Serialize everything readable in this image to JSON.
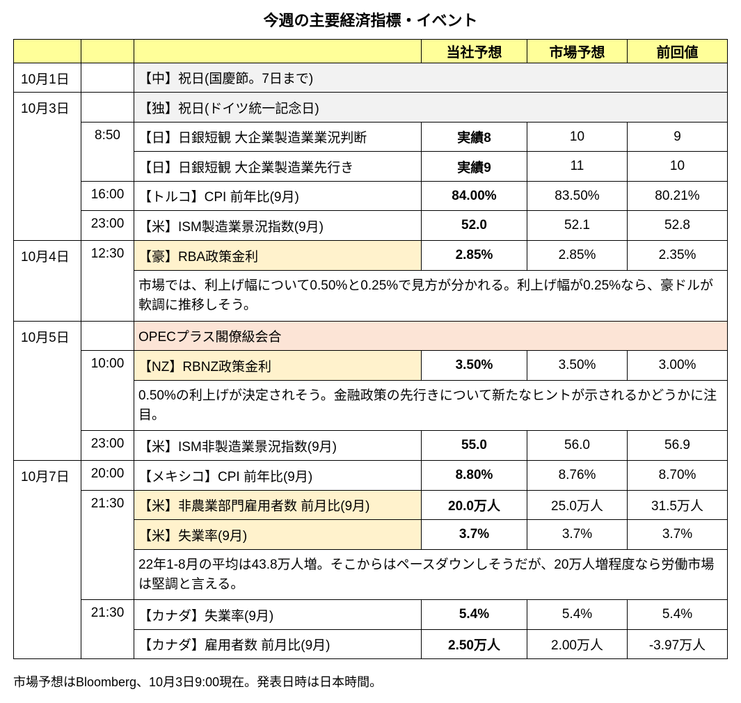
{
  "title": "今週の主要経済指標・イベント",
  "header": {
    "ours": "当社予想",
    "market": "市場予想",
    "prev": "前回値"
  },
  "rows": {
    "r1": {
      "date": "10月1日",
      "event": "【中】祝日(国慶節。7日まで)"
    },
    "r2": {
      "date": "10月3日",
      "event": "【独】祝日(ドイツ統一記念日)"
    },
    "r3": {
      "time": "8:50",
      "event": "【日】日銀短観 大企業製造業業況判断",
      "ours": "実績8",
      "market": "10",
      "prev": "9"
    },
    "r4": {
      "event": "【日】日銀短観 大企業製造業先行き",
      "ours": "実績9",
      "market": "11",
      "prev": "10"
    },
    "r5": {
      "time": "16:00",
      "event": "【トルコ】CPI 前年比(9月)",
      "ours": "84.00%",
      "market": "83.50%",
      "prev": "80.21%"
    },
    "r6": {
      "time": "23:00",
      "event": "【米】ISM製造業景況指数(9月)",
      "ours": "52.0",
      "market": "52.1",
      "prev": "52.8"
    },
    "r7": {
      "date": "10月4日",
      "time": "12:30",
      "event": "【豪】RBA政策金利",
      "ours": "2.85%",
      "market": "2.85%",
      "prev": "2.35%"
    },
    "n1": "市場では、利上げ幅について0.50%と0.25%で見方が分かれる。利上げ幅が0.25%なら、豪ドルが軟調に推移しそう。",
    "r8": {
      "date": "10月5日",
      "event": "OPECプラス閣僚級会合"
    },
    "r9": {
      "time": "10:00",
      "event": "【NZ】RBNZ政策金利",
      "ours": "3.50%",
      "market": "3.50%",
      "prev": "3.00%"
    },
    "n2": "0.50%の利上げが決定されそう。金融政策の先行きについて新たなヒントが示されるかどうかに注目。",
    "r10": {
      "time": "23:00",
      "event": "【米】ISM非製造業景況指数(9月)",
      "ours": "55.0",
      "market": "56.0",
      "prev": "56.9"
    },
    "r11": {
      "date": "10月7日",
      "time": "20:00",
      "event": "【メキシコ】CPI 前年比(9月)",
      "ours": "8.80%",
      "market": "8.76%",
      "prev": "8.70%"
    },
    "r12": {
      "time": "21:30",
      "event": "【米】非農業部門雇用者数 前月比(9月)",
      "ours": "20.0万人",
      "market": "25.0万人",
      "prev": "31.5万人"
    },
    "r13": {
      "event": "【米】失業率(9月)",
      "ours": "3.7%",
      "market": "3.7%",
      "prev": "3.7%"
    },
    "n3": "22年1-8月の平均は43.8万人増。そこからはペースダウンしそうだが、20万人増程度なら労働市場は堅調と言える。",
    "r14": {
      "time": "21:30",
      "event": "【カナダ】失業率(9月)",
      "ours": "5.4%",
      "market": "5.4%",
      "prev": "5.4%"
    },
    "r15": {
      "event": "【カナダ】雇用者数 前月比(9月)",
      "ours": "2.50万人",
      "market": "2.00万人",
      "prev": "-3.97万人"
    }
  },
  "footnote": "市場予想はBloomberg、10月3日9:00現在。発表日時は日本時間。",
  "colors": {
    "header_bg": "#ffff99",
    "highlight_yellow": "#fff2cc",
    "highlight_orange": "#fce4d6",
    "row_gray": "#f2f2f2"
  }
}
